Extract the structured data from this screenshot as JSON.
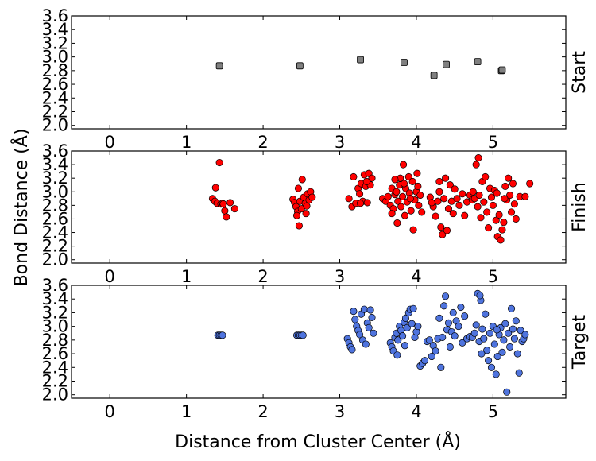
{
  "chart_data": {
    "type": "scatter",
    "xlabel": "Distance from Cluster Center (Å)",
    "ylabel": "Bond Distance (Å)",
    "xlim": [
      -0.5,
      5.95
    ],
    "ylim": [
      1.95,
      3.6
    ],
    "x_ticks": [
      "0",
      "1",
      "2",
      "3",
      "4",
      "5"
    ],
    "y_ticks": [
      "2.0",
      "2.2",
      "2.4",
      "2.6",
      "2.8",
      "3.0",
      "3.2",
      "3.4",
      "3.6"
    ],
    "grid": false,
    "panels": [
      {
        "label": "Start",
        "color": "#808080",
        "marker": "square",
        "points": [
          [
            1.43,
            2.87
          ],
          [
            2.48,
            2.87
          ],
          [
            3.27,
            2.96
          ],
          [
            3.84,
            2.92
          ],
          [
            4.23,
            2.73
          ],
          [
            4.39,
            2.89
          ],
          [
            4.8,
            2.93
          ],
          [
            5.11,
            2.8
          ],
          [
            5.12,
            2.81
          ]
        ]
      },
      {
        "label": "Finish",
        "color": "#ff0000",
        "marker": "circle",
        "points": [
          [
            1.34,
            2.9
          ],
          [
            1.37,
            2.86
          ],
          [
            1.4,
            2.83
          ],
          [
            1.38,
            3.06
          ],
          [
            1.43,
            3.43
          ],
          [
            1.45,
            2.82
          ],
          [
            1.47,
            2.83
          ],
          [
            1.5,
            2.72
          ],
          [
            1.52,
            2.63
          ],
          [
            1.57,
            2.84
          ],
          [
            1.63,
            2.75
          ],
          [
            1.48,
            2.82
          ],
          [
            2.39,
            2.89
          ],
          [
            2.41,
            2.84
          ],
          [
            2.43,
            2.78
          ],
          [
            2.45,
            2.71
          ],
          [
            2.46,
            3.05
          ],
          [
            2.47,
            2.5
          ],
          [
            2.48,
            2.86
          ],
          [
            2.5,
            2.75
          ],
          [
            2.51,
            3.18
          ],
          [
            2.53,
            2.92
          ],
          [
            2.55,
            2.83
          ],
          [
            2.57,
            2.79
          ],
          [
            2.58,
            2.97
          ],
          [
            2.6,
            2.88
          ],
          [
            2.62,
            3.0
          ],
          [
            2.64,
            2.92
          ],
          [
            2.44,
            2.65
          ],
          [
            2.56,
            2.68
          ],
          [
            3.12,
            2.9
          ],
          [
            3.16,
            2.78
          ],
          [
            3.18,
            3.22
          ],
          [
            3.21,
            2.83
          ],
          [
            3.24,
            3.05
          ],
          [
            3.26,
            2.97
          ],
          [
            3.28,
            3.12
          ],
          [
            3.3,
            2.86
          ],
          [
            3.32,
            3.25
          ],
          [
            3.34,
            3.08
          ],
          [
            3.36,
            2.84
          ],
          [
            3.38,
            3.27
          ],
          [
            3.4,
            3.1
          ],
          [
            3.42,
            3.2
          ],
          [
            3.27,
            2.83
          ],
          [
            3.35,
            3.15
          ],
          [
            3.56,
            2.9
          ],
          [
            3.6,
            2.86
          ],
          [
            3.63,
            2.93
          ],
          [
            3.66,
            2.8
          ],
          [
            3.68,
            3.05
          ],
          [
            3.7,
            2.75
          ],
          [
            3.72,
            2.96
          ],
          [
            3.74,
            3.0
          ],
          [
            3.75,
            2.54
          ],
          [
            3.76,
            2.86
          ],
          [
            3.78,
            3.1
          ],
          [
            3.79,
            3.2
          ],
          [
            3.8,
            2.78
          ],
          [
            3.82,
            2.93
          ],
          [
            3.83,
            3.4
          ],
          [
            3.85,
            2.65
          ],
          [
            3.86,
            3.05
          ],
          [
            3.88,
            2.85
          ],
          [
            3.9,
            3.22
          ],
          [
            3.91,
            2.98
          ],
          [
            3.93,
            2.72
          ],
          [
            3.95,
            3.15
          ],
          [
            3.96,
            2.44
          ],
          [
            3.98,
            2.88
          ],
          [
            4.0,
            3.0
          ],
          [
            4.01,
            3.27
          ],
          [
            4.03,
            2.8
          ],
          [
            4.05,
            2.95
          ],
          [
            4.07,
            2.7
          ],
          [
            3.84,
            3.12
          ],
          [
            3.72,
            3.18
          ],
          [
            3.68,
            2.68
          ],
          [
            3.92,
            2.9
          ],
          [
            4.02,
            3.08
          ],
          [
            4.18,
            2.92
          ],
          [
            4.22,
            2.78
          ],
          [
            4.25,
            2.64
          ],
          [
            4.28,
            2.86
          ],
          [
            4.3,
            3.0
          ],
          [
            4.32,
            2.48
          ],
          [
            4.34,
            2.37
          ],
          [
            4.36,
            2.9
          ],
          [
            4.38,
            3.2
          ],
          [
            4.4,
            2.43
          ],
          [
            4.42,
            2.75
          ],
          [
            4.44,
            3.1
          ],
          [
            4.46,
            2.86
          ],
          [
            4.48,
            2.68
          ],
          [
            4.5,
            3.04
          ],
          [
            4.53,
            2.9
          ],
          [
            4.56,
            2.8
          ],
          [
            4.6,
            2.97
          ],
          [
            4.63,
            2.65
          ],
          [
            4.66,
            2.85
          ],
          [
            4.7,
            2.95
          ],
          [
            4.73,
            2.88
          ],
          [
            4.3,
            3.15
          ],
          [
            4.2,
            2.84
          ],
          [
            4.74,
            3.0
          ],
          [
            4.76,
            2.9
          ],
          [
            4.78,
            3.4
          ],
          [
            4.8,
            2.78
          ],
          [
            4.81,
            3.5
          ],
          [
            4.82,
            2.95
          ],
          [
            4.84,
            2.62
          ],
          [
            4.86,
            3.15
          ],
          [
            4.88,
            2.85
          ],
          [
            4.9,
            3.22
          ],
          [
            4.92,
            2.7
          ],
          [
            4.94,
            2.47
          ],
          [
            4.96,
            3.05
          ],
          [
            4.98,
            2.92
          ],
          [
            5.0,
            2.8
          ],
          [
            5.02,
            3.02
          ],
          [
            5.04,
            2.58
          ],
          [
            5.06,
            2.34
          ],
          [
            5.08,
            2.66
          ],
          [
            5.1,
            2.29
          ],
          [
            5.12,
            2.44
          ],
          [
            5.14,
            2.55
          ],
          [
            5.16,
            3.08
          ],
          [
            5.18,
            2.88
          ],
          [
            5.2,
            3.2
          ],
          [
            5.22,
            2.95
          ],
          [
            5.24,
            2.7
          ],
          [
            5.26,
            3.12
          ],
          [
            5.28,
            2.82
          ],
          [
            5.3,
            2.6
          ],
          [
            5.35,
            2.93
          ],
          [
            5.42,
            2.93
          ],
          [
            5.48,
            3.12
          ],
          [
            5.05,
            2.98
          ],
          [
            5.15,
            2.9
          ]
        ]
      },
      {
        "label": "Target",
        "color": "#4f74de",
        "marker": "circle",
        "points": [
          [
            1.41,
            2.87
          ],
          [
            1.43,
            2.87
          ],
          [
            1.45,
            2.87
          ],
          [
            1.47,
            2.87
          ],
          [
            2.44,
            2.87
          ],
          [
            2.46,
            2.87
          ],
          [
            2.48,
            2.87
          ],
          [
            2.5,
            2.87
          ],
          [
            2.52,
            2.87
          ],
          [
            3.1,
            2.82
          ],
          [
            3.12,
            2.76
          ],
          [
            3.14,
            2.7
          ],
          [
            3.16,
            2.66
          ],
          [
            3.18,
            3.22
          ],
          [
            3.2,
            3.1
          ],
          [
            3.22,
            3.0
          ],
          [
            3.24,
            2.94
          ],
          [
            3.26,
            2.88
          ],
          [
            3.28,
            3.18
          ],
          [
            3.3,
            2.8
          ],
          [
            3.32,
            3.25
          ],
          [
            3.34,
            2.74
          ],
          [
            3.36,
            3.05
          ],
          [
            3.38,
            2.98
          ],
          [
            3.4,
            3.24
          ],
          [
            3.42,
            3.13
          ],
          [
            3.44,
            2.9
          ],
          [
            3.66,
            2.76
          ],
          [
            3.68,
            2.7
          ],
          [
            3.7,
            2.64
          ],
          [
            3.72,
            2.84
          ],
          [
            3.74,
            2.9
          ],
          [
            3.76,
            2.8
          ],
          [
            3.78,
            3.0
          ],
          [
            3.8,
            2.94
          ],
          [
            3.82,
            2.86
          ],
          [
            3.84,
            3.06
          ],
          [
            3.86,
            3.12
          ],
          [
            3.88,
            2.98
          ],
          [
            3.9,
            3.2
          ],
          [
            3.92,
            3.25
          ],
          [
            3.94,
            3.04
          ],
          [
            3.96,
            3.26
          ],
          [
            3.98,
            2.84
          ],
          [
            4.0,
            2.92
          ],
          [
            4.02,
            3.0
          ],
          [
            3.75,
            2.58
          ],
          [
            3.85,
            2.72
          ],
          [
            4.05,
            2.42
          ],
          [
            4.08,
            2.46
          ],
          [
            4.11,
            2.5
          ],
          [
            4.14,
            2.78
          ],
          [
            4.17,
            2.8
          ],
          [
            4.2,
            2.56
          ],
          [
            4.22,
            2.72
          ],
          [
            4.25,
            2.64
          ],
          [
            4.28,
            2.82
          ],
          [
            4.3,
            3.12
          ],
          [
            4.32,
            2.4
          ],
          [
            4.34,
            2.84
          ],
          [
            4.36,
            3.3
          ],
          [
            4.38,
            3.44
          ],
          [
            4.4,
            2.95
          ],
          [
            4.42,
            3.05
          ],
          [
            4.44,
            2.7
          ],
          [
            4.46,
            2.92
          ],
          [
            4.48,
            3.2
          ],
          [
            4.5,
            2.86
          ],
          [
            4.52,
            3.08
          ],
          [
            4.55,
            3.0
          ],
          [
            4.58,
            3.28
          ],
          [
            4.6,
            2.76
          ],
          [
            4.63,
            3.15
          ],
          [
            4.66,
            2.82
          ],
          [
            4.7,
            2.85
          ],
          [
            4.73,
            2.84
          ],
          [
            4.76,
            2.9
          ],
          [
            4.78,
            3.02
          ],
          [
            4.8,
            3.48
          ],
          [
            4.82,
            2.78
          ],
          [
            4.84,
            3.38
          ],
          [
            4.86,
            2.96
          ],
          [
            4.88,
            2.82
          ],
          [
            4.9,
            3.18
          ],
          [
            4.92,
            2.65
          ],
          [
            4.94,
            2.5
          ],
          [
            4.96,
            2.9
          ],
          [
            4.98,
            2.4
          ],
          [
            5.0,
            3.0
          ],
          [
            5.02,
            2.74
          ],
          [
            5.04,
            2.3
          ],
          [
            5.06,
            2.56
          ],
          [
            5.08,
            2.88
          ],
          [
            5.1,
            2.98
          ],
          [
            5.12,
            2.62
          ],
          [
            5.14,
            2.8
          ],
          [
            5.16,
            3.04
          ],
          [
            5.18,
            2.04
          ],
          [
            5.2,
            2.9
          ],
          [
            5.22,
            2.7
          ],
          [
            5.24,
            3.26
          ],
          [
            5.26,
            2.96
          ],
          [
            5.28,
            2.82
          ],
          [
            5.3,
            3.08
          ],
          [
            5.32,
            2.6
          ],
          [
            5.34,
            2.32
          ],
          [
            5.36,
            2.94
          ],
          [
            5.38,
            2.78
          ],
          [
            5.4,
            2.82
          ],
          [
            5.42,
            2.88
          ],
          [
            4.83,
            3.45
          ],
          [
            5.05,
            2.95
          ],
          [
            4.85,
            2.6
          ]
        ]
      }
    ]
  }
}
